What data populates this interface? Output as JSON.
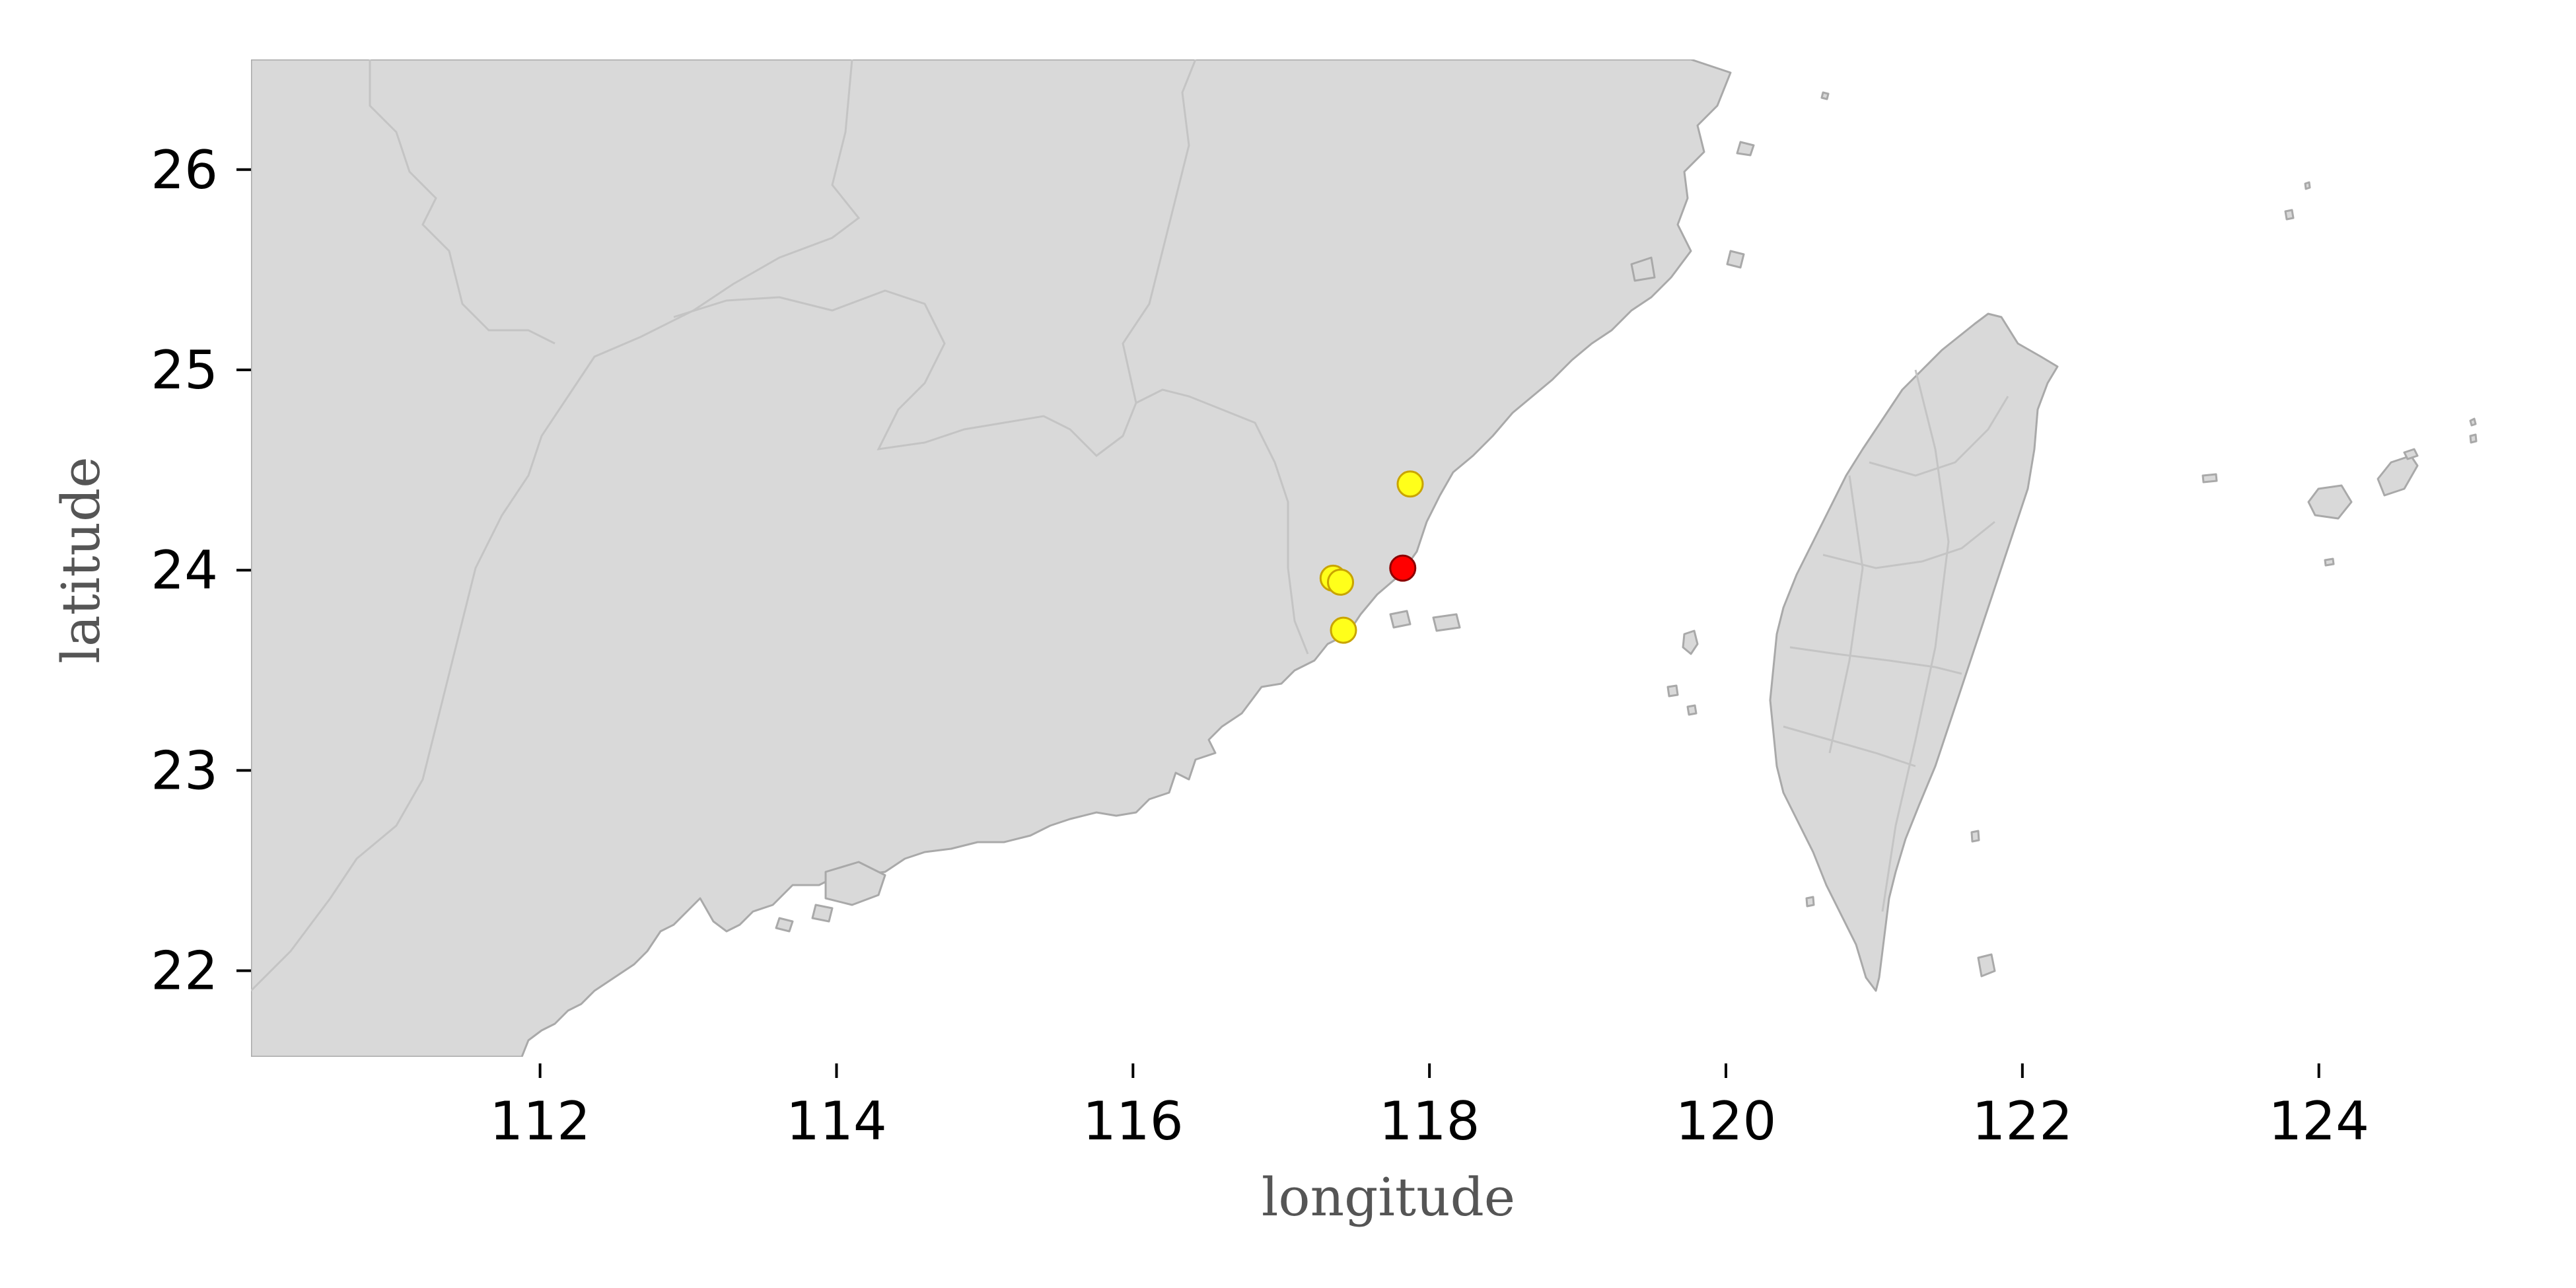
{
  "axes": {
    "xlabel": "longitude",
    "ylabel": "latitude",
    "xlim": [
      110.05,
      125.2
    ],
    "ylim": [
      21.57,
      26.55
    ],
    "xticks": [
      112,
      114,
      116,
      118,
      120,
      122,
      124
    ],
    "yticks": [
      22,
      23,
      24,
      25,
      26
    ]
  },
  "colors": {
    "land": "#d9d9d9",
    "coastline": "#a9a9a9",
    "province_border": "#c4c4c4",
    "marker_primary": "#ff0000",
    "marker_secondary": "#ffff1a"
  },
  "points": [
    {
      "lon": 117.82,
      "lat": 24.01,
      "color": "#ff0000",
      "kind": "primary"
    },
    {
      "lon": 117.87,
      "lat": 24.43,
      "color": "#ffff1a",
      "kind": "secondary"
    },
    {
      "lon": 117.35,
      "lat": 23.96,
      "color": "#ffff1a",
      "kind": "secondary"
    },
    {
      "lon": 117.4,
      "lat": 23.94,
      "color": "#ffff1a",
      "kind": "secondary"
    },
    {
      "lon": 117.42,
      "lat": 23.7,
      "color": "#ffff1a",
      "kind": "secondary"
    }
  ]
}
